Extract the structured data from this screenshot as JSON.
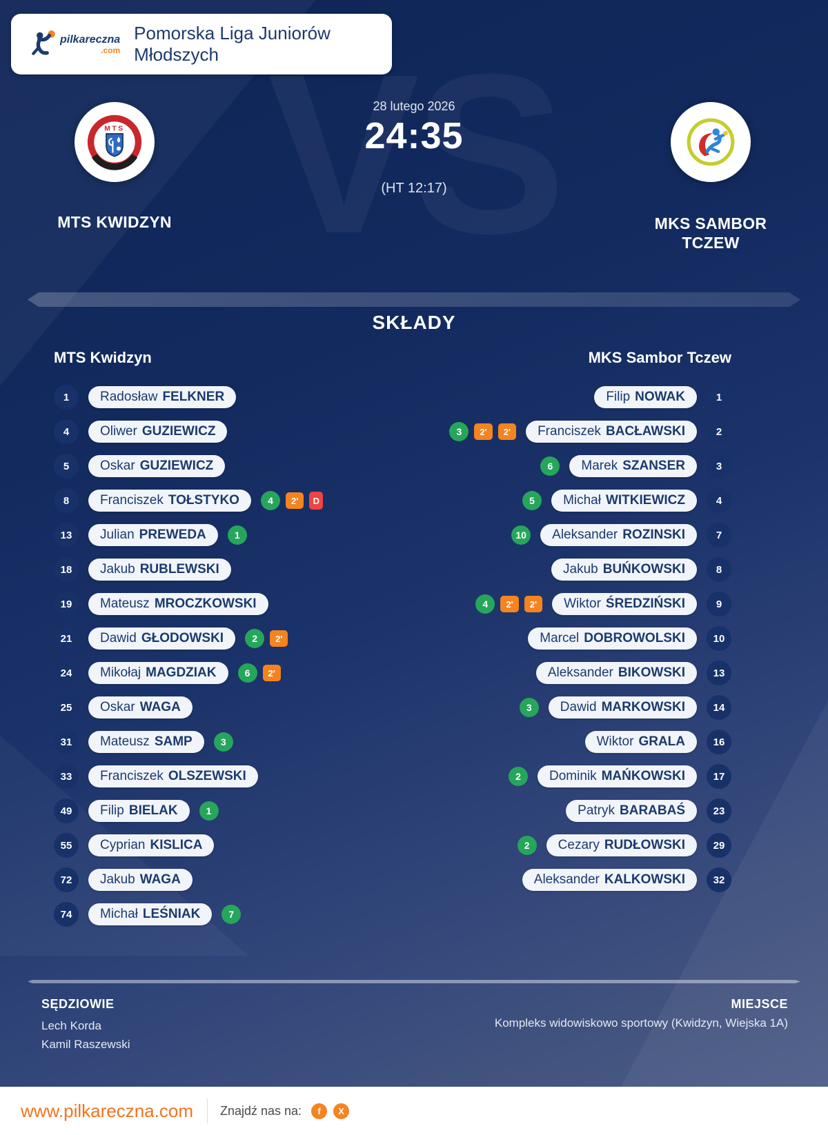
{
  "header": {
    "brand_name": "pilkareczna",
    "brand_tld": ".com",
    "title": "Pomorska Liga Juniorów Młodszych"
  },
  "match": {
    "date": "28 lutego 2026",
    "score": "24:35",
    "halftime": "(HT 12:17)",
    "vs_watermark": "VS",
    "home_team": "MTS KWIDZYN",
    "away_team": "MKS SAMBOR TCZEW"
  },
  "lineups": {
    "section_title": "SKŁADY",
    "home_header": "MTS Kwidzyn",
    "away_header": "MKS Sambor Tczew",
    "home_players": [
      {
        "number": "1",
        "first": "Radosław",
        "last": "FELKNER",
        "badges": []
      },
      {
        "number": "4",
        "first": "Oliwer",
        "last": "GUZIEWICZ",
        "badges": []
      },
      {
        "number": "5",
        "first": "Oskar",
        "last": "GUZIEWICZ",
        "badges": []
      },
      {
        "number": "8",
        "first": "Franciszek",
        "last": "TOŁSTYKO",
        "badges": [
          {
            "type": "goals",
            "value": "4"
          },
          {
            "type": "pen2",
            "value": "2'"
          },
          {
            "type": "disq",
            "value": "D"
          }
        ]
      },
      {
        "number": "13",
        "first": "Julian",
        "last": "PREWEDA",
        "badges": [
          {
            "type": "goals",
            "value": "1"
          }
        ]
      },
      {
        "number": "18",
        "first": "Jakub",
        "last": "RUBLEWSKI",
        "badges": []
      },
      {
        "number": "19",
        "first": "Mateusz",
        "last": "MROCZKOWSKI",
        "badges": []
      },
      {
        "number": "21",
        "first": "Dawid",
        "last": "GŁODOWSKI",
        "badges": [
          {
            "type": "goals",
            "value": "2"
          },
          {
            "type": "pen2",
            "value": "2'"
          }
        ]
      },
      {
        "number": "24",
        "first": "Mikołaj",
        "last": "MAGDZIAK",
        "badges": [
          {
            "type": "goals",
            "value": "6"
          },
          {
            "type": "pen2",
            "value": "2'"
          }
        ]
      },
      {
        "number": "25",
        "first": "Oskar",
        "last": "WAGA",
        "badges": []
      },
      {
        "number": "31",
        "first": "Mateusz",
        "last": "SAMP",
        "badges": [
          {
            "type": "goals",
            "value": "3"
          }
        ]
      },
      {
        "number": "33",
        "first": "Franciszek",
        "last": "OLSZEWSKI",
        "badges": []
      },
      {
        "number": "49",
        "first": "Filip",
        "last": "BIELAK",
        "badges": [
          {
            "type": "goals",
            "value": "1"
          }
        ]
      },
      {
        "number": "55",
        "first": "Cyprian",
        "last": "KISLICA",
        "badges": []
      },
      {
        "number": "72",
        "first": "Jakub",
        "last": "WAGA",
        "badges": []
      },
      {
        "number": "74",
        "first": "Michał",
        "last": "LEŚNIAK",
        "badges": [
          {
            "type": "goals",
            "value": "7"
          }
        ]
      }
    ],
    "away_players": [
      {
        "number": "1",
        "first": "Filip",
        "last": "NOWAK",
        "badges": []
      },
      {
        "number": "2",
        "first": "Franciszek",
        "last": "BACŁAWSKI",
        "badges": [
          {
            "type": "goals",
            "value": "3"
          },
          {
            "type": "pen2",
            "value": "2'"
          },
          {
            "type": "pen2",
            "value": "2'"
          }
        ]
      },
      {
        "number": "3",
        "first": "Marek",
        "last": "SZANSER",
        "badges": [
          {
            "type": "goals",
            "value": "6"
          }
        ]
      },
      {
        "number": "4",
        "first": "Michał",
        "last": "WITKIEWICZ",
        "badges": [
          {
            "type": "goals",
            "value": "5"
          }
        ]
      },
      {
        "number": "7",
        "first": "Aleksander",
        "last": "ROZINSKI",
        "badges": [
          {
            "type": "goals",
            "value": "10"
          }
        ]
      },
      {
        "number": "8",
        "first": "Jakub",
        "last": "BUŃKOWSKI",
        "badges": []
      },
      {
        "number": "9",
        "first": "Wiktor",
        "last": "ŚREDZIŃSKI",
        "badges": [
          {
            "type": "goals",
            "value": "4"
          },
          {
            "type": "pen2",
            "value": "2'"
          },
          {
            "type": "pen2",
            "value": "2'"
          }
        ]
      },
      {
        "number": "10",
        "first": "Marcel",
        "last": "DOBROWOLSKI",
        "badges": []
      },
      {
        "number": "13",
        "first": "Aleksander",
        "last": "BIKOWSKI",
        "badges": []
      },
      {
        "number": "14",
        "first": "Dawid",
        "last": "MARKOWSKI",
        "badges": [
          {
            "type": "goals",
            "value": "3"
          }
        ]
      },
      {
        "number": "16",
        "first": "Wiktor",
        "last": "GRALA",
        "badges": []
      },
      {
        "number": "17",
        "first": "Dominik",
        "last": "MAŃKOWSKI",
        "badges": [
          {
            "type": "goals",
            "value": "2"
          }
        ]
      },
      {
        "number": "23",
        "first": "Patryk",
        "last": "BARABAŚ",
        "badges": []
      },
      {
        "number": "29",
        "first": "Cezary",
        "last": "RUDŁOWSKI",
        "badges": [
          {
            "type": "goals",
            "value": "2"
          }
        ]
      },
      {
        "number": "32",
        "first": "Aleksander",
        "last": "KALKOWSKI",
        "badges": []
      }
    ]
  },
  "info": {
    "referees_label": "SĘDZIOWIE",
    "referees": [
      "Lech Korda",
      "Kamil Raszewski"
    ],
    "venue_label": "MIEJSCE",
    "venue": "Kompleks widowiskowo sportowy (Kwidzyn, Wiejska 1A)"
  },
  "footer": {
    "url": "www.pilkareczna.com",
    "social_label": "Znajdź nas na:",
    "social": [
      {
        "name": "facebook-icon",
        "glyph": "f"
      },
      {
        "name": "x-icon",
        "glyph": "X"
      }
    ]
  },
  "colors": {
    "accent_orange": "#f5831f",
    "goal_green": "#26a65b",
    "penalty_orange": "#f5831f",
    "disqualification_red": "#ee4444",
    "navy_text": "#1c3a6d",
    "background_top": "#0f2557",
    "background_bottom": "#4e5f8a"
  }
}
